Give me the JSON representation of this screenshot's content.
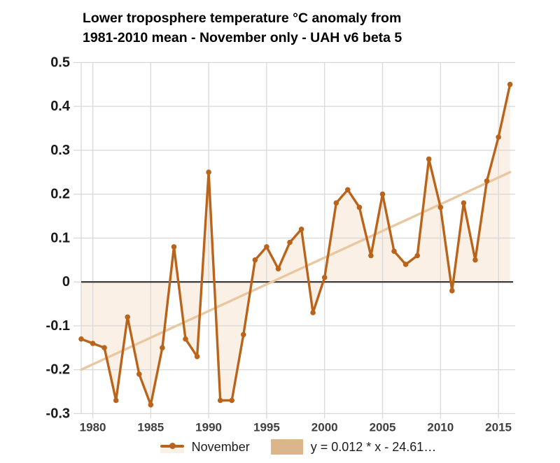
{
  "title": {
    "line1": "Lower troposphere temperature °C anomaly from",
    "line2": "1981-2010 mean - November only - UAH v6 beta 5"
  },
  "colors": {
    "series": "#b9641a",
    "series_fill": "#faf0e5",
    "trend": "#e9c7a0",
    "trend_swatch": "#ddb58b",
    "grid": "#d8d8d8",
    "zero_line": "#3c3c3c",
    "y_label_text": "#1a1a1a",
    "x_label_text": "#3f3f3f",
    "background": "#ffffff"
  },
  "chart_data": {
    "type": "line",
    "title": "Lower troposphere temperature °C anomaly from 1981-2010 mean - November only - UAH v6 beta 5",
    "x": [
      1979,
      1980,
      1981,
      1982,
      1983,
      1984,
      1985,
      1986,
      1987,
      1988,
      1989,
      1990,
      1991,
      1992,
      1993,
      1994,
      1995,
      1996,
      1997,
      1998,
      1999,
      2000,
      2001,
      2002,
      2003,
      2004,
      2005,
      2006,
      2007,
      2008,
      2009,
      2010,
      2011,
      2012,
      2013,
      2014,
      2015,
      2016
    ],
    "series": [
      {
        "name": "November",
        "values": [
          -0.13,
          -0.14,
          -0.15,
          -0.27,
          -0.08,
          -0.21,
          -0.28,
          -0.15,
          0.08,
          -0.13,
          -0.17,
          0.25,
          -0.27,
          -0.27,
          -0.12,
          0.05,
          0.08,
          0.03,
          0.09,
          0.12,
          -0.07,
          0.01,
          0.18,
          0.21,
          0.17,
          0.06,
          0.2,
          0.07,
          0.04,
          0.06,
          0.28,
          0.17,
          -0.02,
          0.18,
          0.05,
          0.23,
          0.33,
          0.45
        ]
      }
    ],
    "trend": {
      "label": "y = 0.012 * x - 24.61…",
      "x": [
        1979,
        2016
      ],
      "y": [
        -0.2,
        0.25
      ]
    },
    "xticks": [
      1980,
      1985,
      1990,
      1995,
      2000,
      2005,
      2010,
      2015
    ],
    "yticks": [
      "0.5",
      "0.4",
      "0.3",
      "0.2",
      "0.1",
      "0",
      "-0.1",
      "-0.2",
      "-0.3"
    ],
    "xlim": [
      1979,
      2016.4
    ],
    "ylim": [
      -0.3,
      0.5
    ],
    "fill_to_zero": true,
    "grid": true,
    "legend_position": "bottom"
  }
}
